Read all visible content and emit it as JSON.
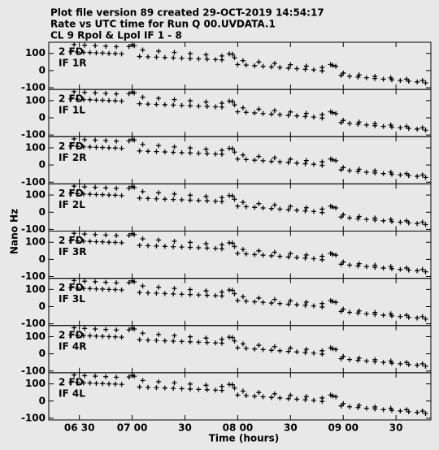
{
  "chart_data": {
    "type": "scatter",
    "title_lines": [
      "Plot file version 89  created 29-OCT-2019 14:54:17",
      "Rate vs UTC time for Run Q 00.UVDATA.1",
      "CL 9   Rpol & Lpol  IF 1 - 8"
    ],
    "xlabel": "Time (hours)",
    "ylabel": "Nano Hz",
    "xlim": [
      6.21,
      9.83
    ],
    "xticks": [
      {
        "value": 6.5,
        "label": "06 30"
      },
      {
        "value": 7.0,
        "label": "07 00"
      },
      {
        "value": 7.5,
        "label": "30"
      },
      {
        "value": 8.0,
        "label": "08 00"
      },
      {
        "value": 8.5,
        "label": "30"
      },
      {
        "value": 9.0,
        "label": "09 00"
      },
      {
        "value": 9.5,
        "label": "30"
      }
    ],
    "ylim": [
      -110,
      165
    ],
    "yticks": [
      100,
      0,
      -100
    ],
    "x": [
      6.42,
      6.48,
      6.54,
      6.6,
      6.66,
      6.72,
      6.78,
      6.84,
      6.9,
      6.45,
      6.55,
      6.65,
      6.75,
      6.85,
      6.97,
      7.0,
      7.02,
      7.07,
      7.15,
      7.23,
      7.31,
      7.39,
      7.47,
      7.55,
      7.63,
      7.71,
      7.79,
      7.85,
      7.1,
      7.25,
      7.4,
      7.55,
      7.7,
      7.85,
      7.92,
      7.95,
      7.97,
      8.0,
      8.08,
      8.16,
      8.24,
      8.32,
      8.4,
      8.48,
      8.56,
      8.64,
      8.72,
      8.8,
      8.05,
      8.2,
      8.35,
      8.5,
      8.65,
      8.8,
      8.88,
      8.9,
      8.93,
      8.98,
      9.06,
      9.14,
      9.22,
      9.3,
      9.38,
      9.46,
      9.54,
      9.62,
      9.7,
      9.78,
      9.0,
      9.15,
      9.3,
      9.45,
      9.6,
      9.75
    ],
    "panels": [
      {
        "source": "2 FD",
        "name": "IF 1R",
        "values": [
          110,
          108,
          106,
          105,
          103,
          102,
          100,
          99,
          97,
          152,
          148,
          145,
          142,
          139,
          140,
          150,
          145,
          82,
          80,
          78,
          76,
          74,
          72,
          70,
          68,
          66,
          64,
          62,
          120,
          113,
          106,
          99,
          92,
          85,
          97,
          95,
          75,
          35,
          32,
          28,
          25,
          21,
          18,
          14,
          11,
          7,
          4,
          -2,
          58,
          50,
          42,
          34,
          26,
          18,
          35,
          30,
          25,
          -28,
          -33,
          -38,
          -42,
          -46,
          -50,
          -54,
          -58,
          -62,
          -66,
          -72,
          -15,
          -25,
          -34,
          -42,
          -50,
          -58
        ]
      },
      {
        "source": "2 FD",
        "name": "IF 1L",
        "values": [
          110,
          108,
          106,
          105,
          103,
          102,
          100,
          99,
          97,
          152,
          148,
          145,
          142,
          139,
          140,
          150,
          145,
          82,
          80,
          78,
          76,
          74,
          72,
          70,
          68,
          66,
          64,
          62,
          120,
          113,
          106,
          99,
          92,
          85,
          97,
          95,
          75,
          35,
          32,
          28,
          25,
          21,
          18,
          14,
          11,
          7,
          4,
          -2,
          58,
          50,
          42,
          34,
          26,
          18,
          35,
          30,
          25,
          -28,
          -33,
          -38,
          -42,
          -46,
          -50,
          -54,
          -58,
          -62,
          -66,
          -72,
          -15,
          -25,
          -34,
          -42,
          -50,
          -58
        ]
      },
      {
        "source": "2 FD",
        "name": "IF 2R",
        "values": [
          110,
          108,
          106,
          105,
          103,
          102,
          100,
          99,
          97,
          152,
          148,
          145,
          142,
          139,
          140,
          150,
          145,
          82,
          80,
          78,
          76,
          74,
          72,
          70,
          68,
          66,
          64,
          62,
          120,
          113,
          106,
          99,
          92,
          85,
          97,
          95,
          75,
          35,
          32,
          28,
          25,
          21,
          18,
          14,
          11,
          7,
          4,
          -2,
          58,
          50,
          42,
          34,
          26,
          18,
          35,
          30,
          25,
          -28,
          -33,
          -38,
          -42,
          -46,
          -50,
          -54,
          -58,
          -62,
          -66,
          -72,
          -15,
          -25,
          -34,
          -42,
          -50,
          -58
        ]
      },
      {
        "source": "2 FD",
        "name": "IF 2L",
        "values": [
          110,
          108,
          106,
          105,
          103,
          102,
          100,
          99,
          97,
          152,
          148,
          145,
          142,
          139,
          140,
          150,
          145,
          82,
          80,
          78,
          76,
          74,
          72,
          70,
          68,
          66,
          64,
          62,
          120,
          113,
          106,
          99,
          92,
          85,
          97,
          95,
          75,
          35,
          32,
          28,
          25,
          21,
          18,
          14,
          11,
          7,
          4,
          -2,
          58,
          50,
          42,
          34,
          26,
          18,
          35,
          30,
          25,
          -28,
          -33,
          -38,
          -42,
          -46,
          -50,
          -54,
          -58,
          -62,
          -66,
          -72,
          -15,
          -25,
          -34,
          -42,
          -50,
          -58
        ]
      },
      {
        "source": "2 FD",
        "name": "IF 3R",
        "values": [
          110,
          108,
          106,
          105,
          103,
          102,
          100,
          99,
          97,
          152,
          148,
          145,
          142,
          139,
          140,
          150,
          145,
          82,
          80,
          78,
          76,
          74,
          72,
          70,
          68,
          66,
          64,
          62,
          120,
          113,
          106,
          99,
          92,
          85,
          97,
          95,
          75,
          35,
          32,
          28,
          25,
          21,
          18,
          14,
          11,
          7,
          4,
          -2,
          58,
          50,
          42,
          34,
          26,
          18,
          35,
          30,
          25,
          -28,
          -33,
          -38,
          -42,
          -46,
          -50,
          -54,
          -58,
          -62,
          -66,
          -72,
          -15,
          -25,
          -34,
          -42,
          -50,
          -58
        ]
      },
      {
        "source": "2 FD",
        "name": "IF 3L",
        "values": [
          110,
          108,
          106,
          105,
          103,
          102,
          100,
          99,
          97,
          152,
          148,
          145,
          142,
          139,
          140,
          150,
          145,
          82,
          80,
          78,
          76,
          74,
          72,
          70,
          68,
          66,
          64,
          62,
          120,
          113,
          106,
          99,
          92,
          85,
          97,
          95,
          75,
          35,
          32,
          28,
          25,
          21,
          18,
          14,
          11,
          7,
          4,
          -2,
          58,
          50,
          42,
          34,
          26,
          18,
          35,
          30,
          25,
          -28,
          -33,
          -38,
          -42,
          -46,
          -50,
          -54,
          -58,
          -62,
          -66,
          -72,
          -15,
          -25,
          -34,
          -42,
          -50,
          -58
        ]
      },
      {
        "source": "2 FD",
        "name": "IF 4R",
        "values": [
          110,
          108,
          106,
          105,
          103,
          102,
          100,
          99,
          97,
          152,
          148,
          145,
          142,
          139,
          140,
          150,
          145,
          82,
          80,
          78,
          76,
          74,
          72,
          70,
          68,
          66,
          64,
          62,
          120,
          113,
          106,
          99,
          92,
          85,
          97,
          95,
          75,
          35,
          32,
          28,
          25,
          21,
          18,
          14,
          11,
          7,
          4,
          -2,
          58,
          50,
          42,
          34,
          26,
          18,
          35,
          30,
          25,
          -28,
          -33,
          -38,
          -42,
          -46,
          -50,
          -54,
          -58,
          -62,
          -66,
          -72,
          -15,
          -25,
          -34,
          -42,
          -50,
          -58
        ]
      },
      {
        "source": "2 FD",
        "name": "IF 4L",
        "values": [
          110,
          108,
          106,
          105,
          103,
          102,
          100,
          99,
          97,
          152,
          148,
          145,
          142,
          139,
          140,
          150,
          145,
          82,
          80,
          78,
          76,
          74,
          72,
          70,
          68,
          66,
          64,
          62,
          120,
          113,
          106,
          99,
          92,
          85,
          97,
          95,
          75,
          35,
          32,
          28,
          25,
          21,
          18,
          14,
          11,
          7,
          4,
          -2,
          58,
          50,
          42,
          34,
          26,
          18,
          35,
          30,
          25,
          -28,
          -33,
          -38,
          -42,
          -46,
          -50,
          -54,
          -58,
          -62,
          -66,
          -72,
          -15,
          -25,
          -34,
          -42,
          -50,
          -58
        ]
      }
    ]
  }
}
